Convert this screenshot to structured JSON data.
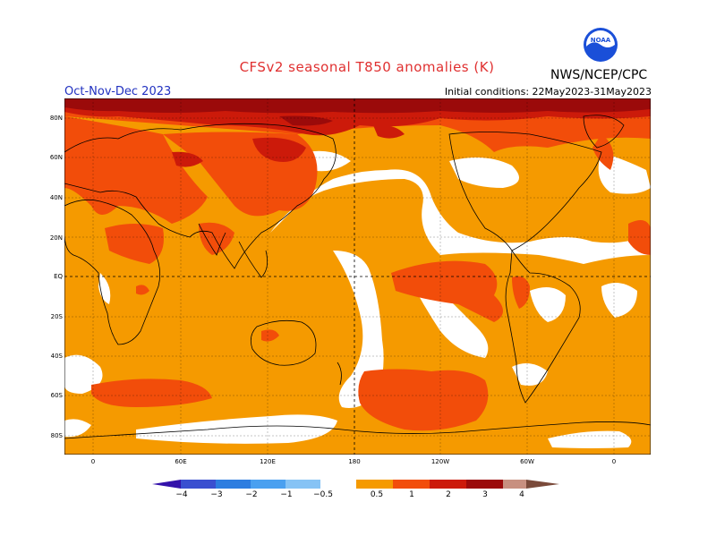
{
  "header": {
    "title": "CFSv2 seasonal T850 anomalies (K)",
    "org": "NWS/NCEP/CPC",
    "period": "Oct-Nov-Dec 2023",
    "initial_conditions": "Initial conditions: 22May2023-31May2023",
    "logo_text": "NOAA"
  },
  "axes": {
    "lat_labels": [
      "80N",
      "60N",
      "40N",
      "20N",
      "EQ",
      "20S",
      "40S",
      "60S",
      "80S"
    ],
    "lon_labels": [
      "0",
      "60E",
      "120E",
      "180",
      "120W",
      "60W",
      "0"
    ]
  },
  "colorbar": {
    "ticks": [
      "−4",
      "−3",
      "−2",
      "−1",
      "−0.5",
      "0.5",
      "1",
      "2",
      "3",
      "4"
    ],
    "colors": [
      "#3311aa",
      "#3a4fd0",
      "#2d7de0",
      "#4aa0f0",
      "#86c3f5",
      "#ffffff",
      "#f59a00",
      "#f24d0a",
      "#cc1a0a",
      "#9b0a0a",
      "#c89080",
      "#7a4a3a"
    ]
  },
  "map": {
    "colors": {
      "light_orange": "#f59a00",
      "orange_red": "#f24d0a",
      "red": "#cc1a0a",
      "dark_red": "#9b0a0a",
      "neutral": "#ffffff"
    }
  }
}
